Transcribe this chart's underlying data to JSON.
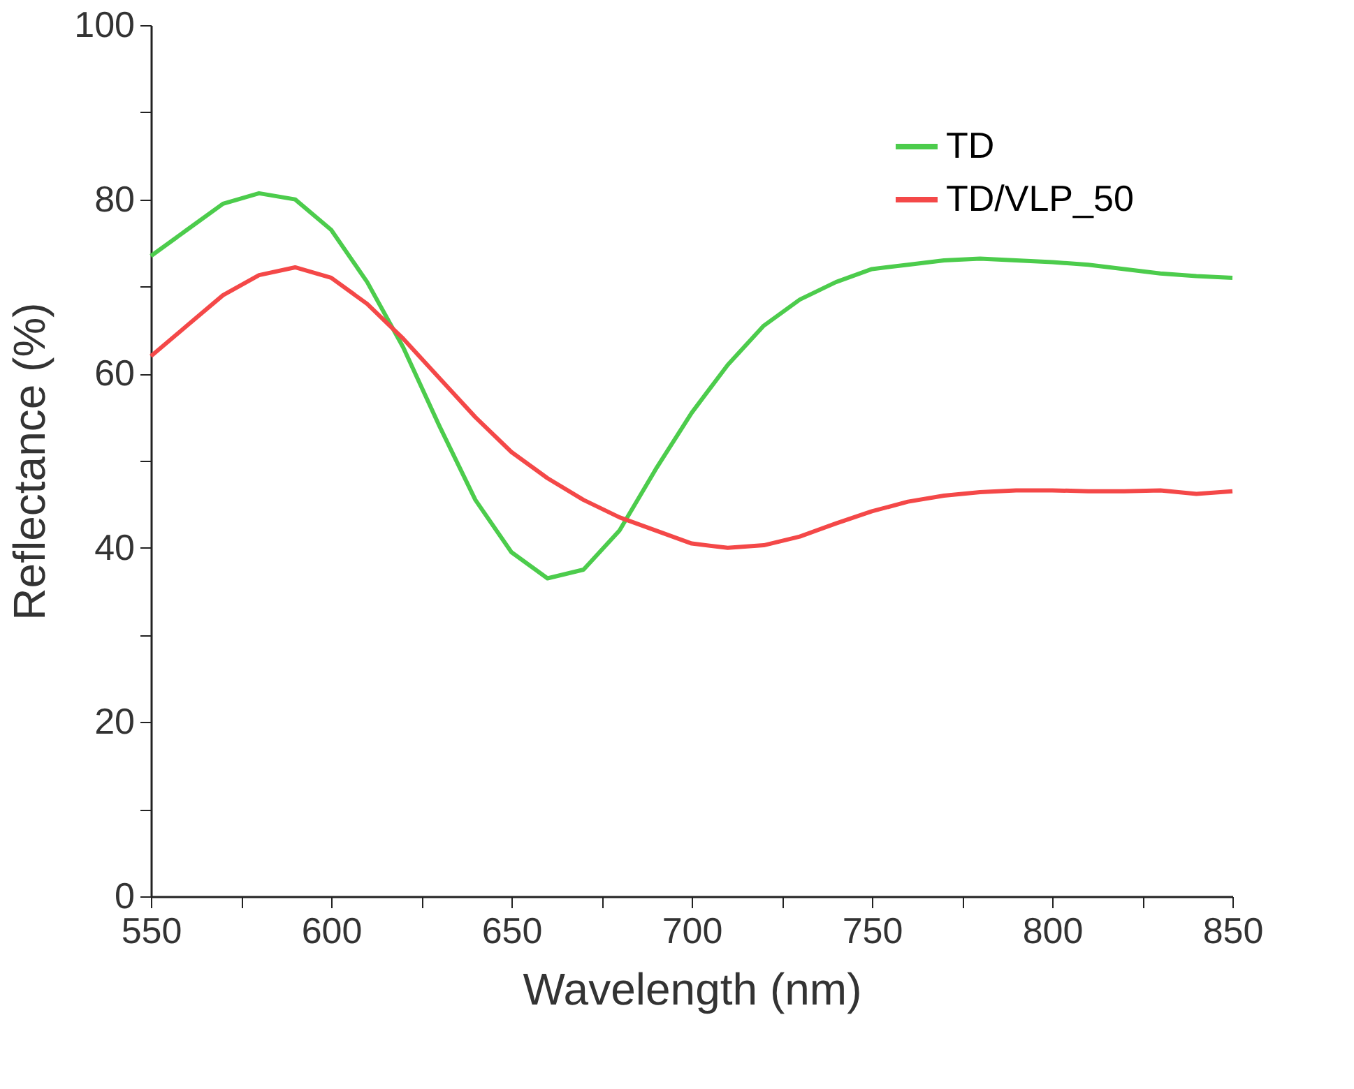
{
  "chart_data": {
    "type": "line",
    "xlabel": "Wavelength (nm)",
    "ylabel": "Reflectance (%)",
    "x": [
      550,
      560,
      570,
      580,
      590,
      600,
      610,
      620,
      630,
      640,
      650,
      660,
      670,
      680,
      690,
      700,
      710,
      720,
      730,
      740,
      750,
      760,
      770,
      780,
      790,
      800,
      810,
      820,
      830,
      840,
      850
    ],
    "series": [
      {
        "name": "TD",
        "color": "#4ccc4c",
        "values": [
          73.5,
          76.5,
          79.5,
          80.7,
          80,
          76.5,
          70.5,
          63,
          54,
          45.5,
          39.5,
          36.5,
          37.5,
          42,
          49,
          55.5,
          61,
          65.5,
          68.5,
          70.5,
          72,
          72.5,
          73,
          73.2,
          73,
          72.8,
          72.5,
          72,
          71.5,
          71.2,
          71
        ]
      },
      {
        "name": "TD/VLP_50",
        "color": "#f44848",
        "values": [
          62,
          65.5,
          69,
          71.3,
          72.2,
          71,
          68,
          64,
          59.5,
          55,
          51,
          48,
          45.5,
          43.5,
          42,
          40.5,
          40,
          40.3,
          41.3,
          42.8,
          44.2,
          45.3,
          46,
          46.4,
          46.6,
          46.6,
          46.5,
          46.5,
          46.6,
          46.2,
          46.5
        ]
      }
    ],
    "xlim": [
      550,
      850
    ],
    "ylim": [
      0,
      100
    ],
    "xticks": [
      550,
      {
        "value": 575,
        "label": null
      },
      600,
      {
        "value": 625,
        "label": null
      },
      650,
      {
        "value": 675,
        "label": null
      },
      700,
      {
        "value": 725,
        "label": null
      },
      750,
      {
        "value": 775,
        "label": null
      },
      800,
      {
        "value": 825,
        "label": null
      },
      850
    ],
    "yticks": [
      0,
      {
        "value": 10,
        "label": null
      },
      20,
      {
        "value": 30,
        "label": null
      },
      40,
      {
        "value": 50,
        "label": null
      },
      60,
      {
        "value": 70,
        "label": null
      },
      80,
      {
        "value": 90,
        "label": null
      },
      100
    ],
    "grid": false,
    "legend": "top right",
    "marker": "none",
    "line_style": "solid"
  }
}
